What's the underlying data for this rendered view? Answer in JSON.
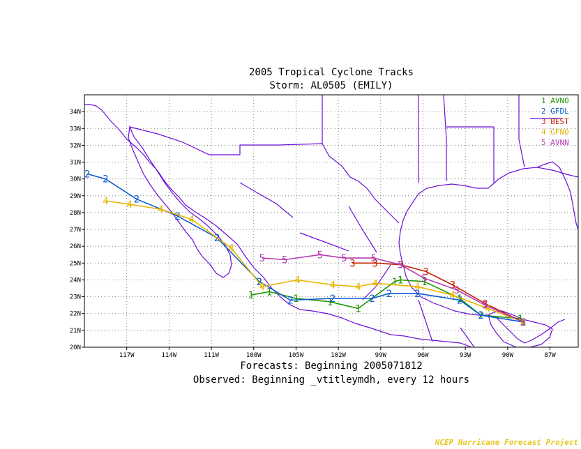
{
  "title_line1": "2005 Tropical Cyclone Tracks",
  "title_line2": "Storm: AL0505 (EMILY)",
  "footer_line1": "Forecasts: Beginning 2005071812",
  "footer_line2": "Observed: Beginning _vtitleymdh, every 12 hours",
  "credit": "NCEP Hurricane Forecast Project",
  "chart_data": {
    "type": "line",
    "x_range": [
      -120,
      -85
    ],
    "y_range": [
      20,
      35
    ],
    "x_ticks": [
      {
        "v": -117,
        "label": "117W"
      },
      {
        "v": -114,
        "label": "114W"
      },
      {
        "v": -111,
        "label": "111W"
      },
      {
        "v": -108,
        "label": "108W"
      },
      {
        "v": -105,
        "label": "105W"
      },
      {
        "v": -102,
        "label": "102W"
      },
      {
        "v": -99,
        "label": "99W"
      },
      {
        "v": -96,
        "label": "96W"
      },
      {
        "v": -93,
        "label": "93W"
      },
      {
        "v": -90,
        "label": "90W"
      },
      {
        "v": -87,
        "label": "87W"
      }
    ],
    "y_ticks": [
      {
        "v": 20,
        "label": "20N"
      },
      {
        "v": 21,
        "label": "21N"
      },
      {
        "v": 22,
        "label": "22N"
      },
      {
        "v": 23,
        "label": "23N"
      },
      {
        "v": 24,
        "label": "24N"
      },
      {
        "v": 25,
        "label": "25N"
      },
      {
        "v": 26,
        "label": "26N"
      },
      {
        "v": 27,
        "label": "27N"
      },
      {
        "v": 28,
        "label": "28N"
      },
      {
        "v": 29,
        "label": "29N"
      },
      {
        "v": 30,
        "label": "30N"
      },
      {
        "v": 31,
        "label": "31N"
      },
      {
        "v": 32,
        "label": "32N"
      },
      {
        "v": 33,
        "label": "33N"
      },
      {
        "v": 34,
        "label": "34N"
      }
    ],
    "grid": true,
    "legend_position": "top-right",
    "series": [
      {
        "name": "AVNO",
        "marker": "1",
        "color": "#1e9600",
        "points": [
          [
            -88.9,
            21.5
          ],
          [
            -89.1,
            21.7
          ],
          [
            -91.9,
            21.9
          ],
          [
            -93.4,
            22.9
          ],
          [
            -95.9,
            23.9
          ],
          [
            -97.6,
            24.0
          ],
          [
            -98.0,
            23.9
          ],
          [
            -100.6,
            22.3
          ],
          [
            -102.6,
            22.7
          ],
          [
            -105.0,
            22.9
          ],
          [
            -106.9,
            23.3
          ],
          [
            -108.2,
            23.1
          ]
        ]
      },
      {
        "name": "GFDL",
        "marker": "2",
        "color": "#0a5ad2",
        "points": [
          [
            -88.9,
            21.5
          ],
          [
            -91.9,
            21.9
          ],
          [
            -93.4,
            22.8
          ],
          [
            -96.4,
            23.2
          ],
          [
            -98.4,
            23.2
          ],
          [
            -99.6,
            22.9
          ],
          [
            -102.4,
            22.9
          ],
          [
            -105.4,
            22.8
          ],
          [
            -107.6,
            23.9
          ],
          [
            -110.6,
            26.5
          ],
          [
            -113.4,
            27.8
          ],
          [
            -116.3,
            28.8
          ],
          [
            -118.5,
            30.0
          ],
          [
            -119.8,
            30.3
          ]
        ]
      },
      {
        "name": "BEST",
        "marker": "3",
        "color": "#c81e00",
        "points": [
          [
            -88.9,
            21.5
          ],
          [
            -91.6,
            22.6
          ],
          [
            -93.9,
            23.7
          ],
          [
            -95.8,
            24.5
          ],
          [
            -97.6,
            24.9
          ],
          [
            -99.4,
            25.0
          ],
          [
            -101.0,
            25.0
          ]
        ]
      },
      {
        "name": "GFNO",
        "marker": "4",
        "color": "#e6b400",
        "points": [
          [
            -88.9,
            21.5
          ],
          [
            -91.4,
            22.3
          ],
          [
            -93.9,
            23.1
          ],
          [
            -96.4,
            23.6
          ],
          [
            -99.4,
            23.8
          ],
          [
            -100.6,
            23.6
          ],
          [
            -102.4,
            23.7
          ],
          [
            -104.9,
            24.0
          ],
          [
            -107.4,
            23.6
          ],
          [
            -109.6,
            25.9
          ],
          [
            -112.4,
            27.6
          ],
          [
            -114.6,
            28.2
          ],
          [
            -116.8,
            28.5
          ],
          [
            -118.5,
            28.7
          ]
        ]
      },
      {
        "name": "AVNN",
        "marker": "5",
        "color": "#b43cb4",
        "points": [
          [
            -88.9,
            21.5
          ],
          [
            -91.6,
            22.5
          ],
          [
            -93.6,
            23.4
          ],
          [
            -95.9,
            24.1
          ],
          [
            -97.6,
            24.9
          ],
          [
            -99.5,
            25.3
          ],
          [
            -101.6,
            25.3
          ],
          [
            -103.3,
            25.5
          ],
          [
            -105.8,
            25.2
          ],
          [
            -107.4,
            25.3
          ]
        ]
      }
    ]
  }
}
